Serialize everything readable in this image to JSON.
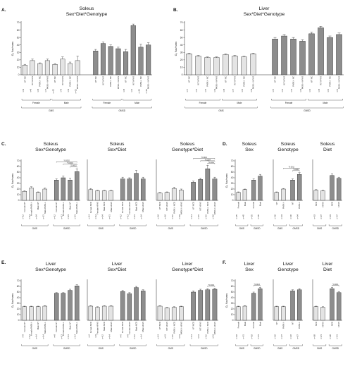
{
  "figure": {
    "panels": [
      {
        "id": "A",
        "letter": "A."
      },
      {
        "id": "B",
        "letter": "B."
      },
      {
        "id": "C",
        "letter": "C."
      },
      {
        "id": "D",
        "letter": "D."
      },
      {
        "id": "E",
        "letter": "E."
      },
      {
        "id": "F",
        "letter": "F."
      }
    ]
  },
  "chart_data": [
    {
      "id": "A",
      "type": "bar",
      "title": "Soleus",
      "subtitle": "Sex*Diet*Genotype",
      "ylabel": "O₂ flux/mass",
      "ylim": [
        0,
        70
      ],
      "yticks": [
        0,
        10,
        20,
        30,
        40,
        50,
        60,
        70
      ],
      "categories": [
        "WT NC",
        "WT HFHS",
        "PASK-/- NC",
        "PASK-/- HFHS",
        "WT NC",
        "WT HFHS",
        "PASK-/- NC",
        "PASK-/- HFHS",
        "WT NC",
        "WT HFHS",
        "PASK-/- NC",
        "PASK-/- HFHS",
        "WT NC",
        "WT HFHS",
        "PASK-/- NC",
        "PASK-/- HFHS"
      ],
      "values": [
        13,
        19,
        15,
        19,
        14,
        21,
        15,
        19,
        32,
        42,
        38,
        35,
        31,
        66,
        37,
        40
      ],
      "errors": [
        1,
        2,
        1,
        2,
        1,
        3,
        2,
        6,
        2,
        2,
        2,
        2,
        3,
        2,
        4,
        3
      ],
      "n_labels": [
        "n=9",
        "n=8",
        "n=8",
        "n=7",
        "n=12",
        "n=9",
        "n=9",
        "n=12",
        "",
        "",
        "",
        "",
        "n=8",
        "n=6",
        "n=10",
        "n=12"
      ],
      "sex_groups": [
        "Female",
        "Male",
        "Female",
        "Male"
      ],
      "diet_groups": [
        "GMS",
        "GMSD"
      ]
    },
    {
      "id": "B",
      "type": "bar",
      "title": "Liver",
      "subtitle": "Sex*Diet*Genotype",
      "ylabel": "O₂ flux/mass",
      "ylim": [
        0,
        70
      ],
      "yticks": [
        0,
        10,
        20,
        30,
        40,
        50,
        60,
        70
      ],
      "categories": [
        "WT NC",
        "WT HFHS",
        "PASK-/- NC",
        "PASK-/- HFHS",
        "WT NC",
        "WT HFHS",
        "PASK-/- NC",
        "PASK-/- HFHS",
        "WT NC",
        "WT HFHS",
        "PASK-/- NC",
        "PASK-/- HFHS",
        "WT NC",
        "WT HFHS",
        "PASK-/- NC",
        "PASK-/- HFHS"
      ],
      "values": [
        28,
        25,
        23,
        23,
        27,
        25,
        24,
        28,
        48,
        52,
        48,
        45,
        55,
        63,
        50,
        54
      ],
      "errors": [
        1,
        1,
        1,
        1,
        1,
        1,
        1,
        1,
        2,
        2,
        2,
        2,
        2,
        2,
        2,
        2
      ],
      "n_labels": [
        "n=7",
        "n=6",
        "n=5",
        "n=9",
        "n=8",
        "n=7",
        "n=6",
        "n=9",
        "n=5",
        "n=6",
        "n=5",
        "n=9",
        "n=6",
        "n=8",
        "n=6",
        "n=5"
      ],
      "sex_groups": [
        "Female",
        "Male",
        "Female",
        "Male"
      ],
      "diet_groups": [
        "GMS",
        "GMSD"
      ]
    },
    {
      "id": "C1",
      "type": "bar",
      "title": "Soleus",
      "subtitle": "Sex*Genotype",
      "ylabel": "O₂ flux/mass",
      "ylim": [
        0,
        70
      ],
      "yticks": [
        0,
        10,
        20,
        30,
        40,
        50,
        60,
        70
      ],
      "categories": [
        "Female WT",
        "Female PASK-/-",
        "Male WT",
        "Male PASK-/-",
        "Female WT",
        "Female PASK-/-",
        "Male WT",
        "Male PASK-/-"
      ],
      "values": [
        16,
        22,
        14,
        20,
        36,
        40,
        36,
        51
      ],
      "errors": [
        1,
        2,
        1,
        2,
        2,
        3,
        3,
        5
      ],
      "n_labels": [
        "n=12",
        "n=13",
        "n=24",
        "n=21",
        "n=12",
        "n=13",
        "n=24",
        "n=21"
      ],
      "diet_groups": [
        "GMS",
        "GMSD"
      ],
      "annotations": [
        "*0.0003",
        "*0.0004",
        "*0.0002"
      ]
    },
    {
      "id": "C2",
      "type": "bar",
      "title": "Soleus",
      "subtitle": "Sex*Diet",
      "ylabel": "",
      "ylim": [
        0,
        70
      ],
      "categories": [
        "Female NCD",
        "Female HFHS",
        "Male NCD",
        "Male HFHS",
        "Female NCD",
        "Female HFHS",
        "Male NCD",
        "Male HFHS"
      ],
      "values": [
        19,
        17,
        17,
        17,
        38,
        38,
        48,
        38
      ],
      "errors": [
        2,
        1,
        1,
        1,
        3,
        2,
        5,
        3
      ],
      "n_labels": [
        "n=13",
        "n=12",
        "n=24",
        "n=21",
        "n=12",
        "n=13",
        "n=21",
        "n=24"
      ],
      "diet_groups": [
        "GMS",
        "GMSD"
      ]
    },
    {
      "id": "C3",
      "type": "bar",
      "title": "Soleus",
      "subtitle": "Genotype*Diet",
      "ylabel": "",
      "ylim": [
        0,
        70
      ],
      "categories": [
        "WT NCD",
        "WT HFHS",
        "PASK-/- NCD",
        "PASK-/- HFHS",
        "WT NCD",
        "WT HFHS",
        "PASK-/- NCD",
        "PASK-/- HFHS"
      ],
      "values": [
        13,
        14,
        21,
        18,
        32,
        37,
        56,
        38
      ],
      "errors": [
        1,
        1,
        2,
        2,
        2,
        2,
        6,
        3
      ],
      "n_labels": [
        "n=18",
        "n=18",
        "n=16",
        "n=18",
        "n=14",
        "n=15",
        "n=15",
        "n=18"
      ],
      "diet_groups": [
        "GMS",
        "GMSD"
      ],
      "annotations": [
        "*0.0001",
        "*0.0004",
        "*0.0002"
      ]
    },
    {
      "id": "D1",
      "type": "bar",
      "title": "Soleus",
      "subtitle": "Sex",
      "ylabel": "O₂ flux/mass",
      "ylim": [
        0,
        70
      ],
      "yticks": [
        0,
        10,
        20,
        30,
        40,
        50,
        60,
        70
      ],
      "categories": [
        "Female",
        "Male",
        "Female",
        "Male"
      ],
      "values": [
        14,
        19,
        36,
        43
      ],
      "errors": [
        1,
        1,
        2,
        3
      ],
      "n_labels": [
        "n=25",
        "n=45",
        "n=25",
        "n=45"
      ],
      "diet_groups": [
        "GMS",
        "GMSD"
      ]
    },
    {
      "id": "D2",
      "type": "bar",
      "title": "Soleus",
      "subtitle": "Genotype",
      "ylabel": "",
      "ylim": [
        0,
        70
      ],
      "categories": [
        "WT",
        "PASK-/-",
        "WT",
        "PASK-/-"
      ],
      "values": [
        14,
        20,
        36,
        46
      ],
      "errors": [
        1,
        1,
        2,
        3
      ],
      "n_labels": [
        "n=36",
        "n=34",
        "n=36",
        "n=34"
      ],
      "diet_groups": [
        "GMS",
        "GMSD"
      ],
      "annotations": [
        "*0.0001",
        "*0.0011"
      ]
    },
    {
      "id": "D3",
      "type": "bar",
      "title": "Soleus",
      "subtitle": "Diet",
      "ylabel": "",
      "ylim": [
        0,
        70
      ],
      "categories": [
        "NCD",
        "HFHS",
        "NCD",
        "HFHS"
      ],
      "values": [
        18,
        17,
        44,
        39
      ],
      "errors": [
        1,
        1,
        3,
        2
      ],
      "n_labels": [
        "n=33",
        "n=37",
        "n=33",
        "n=37"
      ],
      "diet_groups": [
        "GMS",
        "GMSD"
      ]
    },
    {
      "id": "E1",
      "type": "bar",
      "title": "Liver",
      "subtitle": "Sex*Genotype",
      "ylabel": "O₂ flux/mass",
      "ylim": [
        0,
        70
      ],
      "yticks": [
        0,
        10,
        20,
        30,
        40,
        50,
        60,
        70
      ],
      "categories": [
        "Female WT",
        "Female PASK-/-",
        "Male WT",
        "Male PASK-/-",
        "Female WT",
        "Female PASK-/-",
        "Male WT",
        "Male PASK-/-"
      ],
      "values": [
        24,
        24,
        24,
        25,
        48,
        48,
        53,
        61
      ],
      "errors": [
        1,
        1,
        1,
        1,
        1,
        1,
        2,
        2
      ],
      "n_labels": [
        "n=8",
        "n=13",
        "n=14",
        "n=14",
        "n=8",
        "n=13",
        "n=13",
        "n=14"
      ],
      "diet_groups": [
        "GMS",
        "GMSD"
      ]
    },
    {
      "id": "E2",
      "type": "bar",
      "title": "Liver",
      "subtitle": "Sex*Diet",
      "ylabel": "",
      "ylim": [
        0,
        70
      ],
      "categories": [
        "Female NCD",
        "Female HFHS",
        "Male NCD",
        "Male HFHS",
        "Female NCD",
        "Female HFHS",
        "Male NCD",
        "Male HFHS"
      ],
      "values": [
        25,
        23,
        25,
        25,
        51,
        47,
        58,
        52
      ],
      "errors": [
        1,
        1,
        1,
        1,
        2,
        2,
        2,
        2
      ],
      "n_labels": [
        "n=6",
        "n=9",
        "n=12",
        "n=14",
        "n=6",
        "n=9",
        "n=12",
        "n=14"
      ],
      "diet_groups": [
        "GMS",
        "GMSD"
      ]
    },
    {
      "id": "E3",
      "type": "bar",
      "title": "Liver",
      "subtitle": "Genotype*Diet",
      "ylabel": "",
      "ylim": [
        0,
        70
      ],
      "categories": [
        "WT NCD",
        "WT HFHS",
        "PASK-/- NCD",
        "PASK-/- HFHS",
        "WT NCD",
        "WT HFHS",
        "PASK-/- NCD",
        "PASK-/- HFHS"
      ],
      "values": [
        25,
        22,
        23,
        24,
        50,
        53,
        54,
        55
      ],
      "errors": [
        1,
        1,
        1,
        1,
        2,
        2,
        2,
        2
      ],
      "n_labels": [
        "n=13",
        "n=11",
        "n=15",
        "n=11",
        "n=13",
        "n=11",
        "n=16",
        "n=11"
      ],
      "diet_groups": [
        "GMS",
        "GMSD"
      ],
      "annotations": [
        "*0.0004"
      ]
    },
    {
      "id": "F1",
      "type": "bar",
      "title": "Liver",
      "subtitle": "Sex",
      "ylabel": "O₂ flux/mass",
      "ylim": [
        0,
        70
      ],
      "yticks": [
        0,
        10,
        20,
        30,
        40,
        50,
        60,
        70
      ],
      "categories": [
        "Female",
        "Male",
        "Female",
        "Male"
      ],
      "values": [
        24,
        25,
        48,
        56
      ],
      "errors": [
        1,
        1,
        2,
        2
      ],
      "n_labels": [
        "n=18",
        "n=31",
        "n=18",
        "n=31"
      ],
      "diet_groups": [
        "GMS",
        "GMSD"
      ],
      "annotations": [
        "*0.0016"
      ]
    },
    {
      "id": "F2",
      "type": "bar",
      "title": "Liver",
      "subtitle": "Genotype",
      "ylabel": "",
      "ylim": [
        0,
        70
      ],
      "categories": [
        "WT",
        "PASK-/-",
        "WT",
        "PASK-/-"
      ],
      "values": [
        24,
        24,
        52,
        54
      ],
      "errors": [
        1,
        1,
        2,
        2
      ],
      "n_labels": [
        "n=22",
        "n=27",
        "n=22",
        "n=27"
      ],
      "diet_groups": [
        "GMS",
        "GMSD"
      ]
    },
    {
      "id": "F3",
      "type": "bar",
      "title": "Liver",
      "subtitle": "Diet",
      "ylabel": "",
      "ylim": [
        0,
        70
      ],
      "categories": [
        "NCD",
        "HFHS",
        "NCD",
        "HFHS"
      ],
      "values": [
        24,
        23,
        56,
        49
      ],
      "errors": [
        1,
        1,
        2,
        2
      ],
      "n_labels": [
        "n=28",
        "n=21",
        "n=28",
        "n=21"
      ],
      "diet_groups": [
        "GMS",
        "GMSD"
      ],
      "annotations": [
        "*0.0001"
      ]
    }
  ],
  "colors": {
    "gms_fill": "#e4e4e4",
    "gmsd_fill": "#8d8d8d",
    "stroke": "#222222",
    "background": "#ffffff"
  }
}
